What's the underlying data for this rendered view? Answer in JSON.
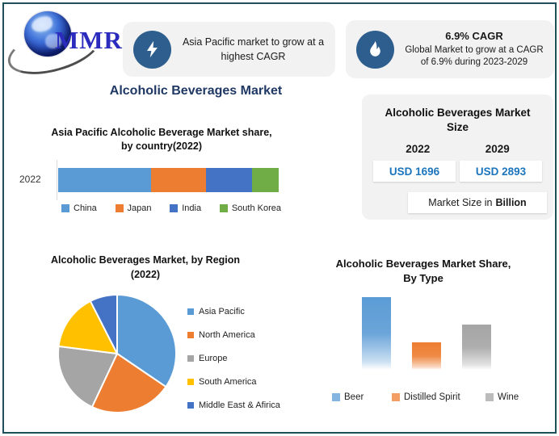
{
  "frame": {
    "border_color": "#1F4E5C"
  },
  "logo": {
    "text": "MMR",
    "color": "#2B2BBE"
  },
  "header": {
    "left_card": {
      "icon": "lightning-icon",
      "icon_bg": "#2D5E8D",
      "text": "Asia Pacific market to grow at a highest CAGR"
    },
    "right_card": {
      "icon": "flame-icon",
      "icon_bg": "#2D5E8D",
      "title": "6.9% CAGR",
      "text": "Global Market to grow at a CAGR of 6.9% during 2023-2029"
    }
  },
  "main_title": {
    "text": "Alcoholic Beverages Market",
    "color": "#1F3864"
  },
  "market_size_panel": {
    "title": "Alcoholic Beverages Market Size",
    "year_left": "2022",
    "year_right": "2029",
    "value_left": "USD 1696",
    "value_right": "USD 2893",
    "value_color": "#1B75BC",
    "unit_prefix": "Market Size in",
    "unit_bold": "Billion"
  },
  "chart_data": [
    {
      "type": "bar",
      "orientation": "horizontal-stacked",
      "title": "Asia Pacific Alcoholic Beverage Market share, by country(2022)",
      "categories": [
        "2022"
      ],
      "series": [
        {
          "name": "China",
          "values": [
            42
          ],
          "color": "#5B9BD5"
        },
        {
          "name": "Japan",
          "values": [
            25
          ],
          "color": "#ED7D31"
        },
        {
          "name": "India",
          "values": [
            21
          ],
          "color": "#4472C4"
        },
        {
          "name": "South Korea",
          "values": [
            12
          ],
          "color": "#70AD47"
        }
      ],
      "unit": "percent share (estimated from bar lengths)",
      "legend_position": "bottom",
      "gridlines": false
    },
    {
      "type": "pie",
      "title": "Alcoholic Beverages Market, by Region (2022)",
      "labels": [
        "Asia Pacific",
        "North America",
        "Europe",
        "South America",
        "Middle East & Afirica"
      ],
      "values": [
        34.5,
        22.5,
        20,
        15.5,
        7.5
      ],
      "colors": [
        "#5B9BD5",
        "#ED7D31",
        "#A5A5A5",
        "#FFC000",
        "#4472C4"
      ],
      "unit": "percent share (estimated from slice angles)",
      "start_angle": 0,
      "legend_position": "right"
    },
    {
      "type": "bar",
      "title": "Alcoholic Beverages Market Share, By Type",
      "categories": [
        "Beer",
        "Distilled Spirit",
        "Wine"
      ],
      "values": [
        50,
        19,
        31
      ],
      "colors": [
        "#5B9BD5",
        "#ED7D31",
        "#A5A5A5"
      ],
      "unit": "percent share (estimated from bar heights)",
      "legend_position": "bottom",
      "gridlines": false
    }
  ]
}
